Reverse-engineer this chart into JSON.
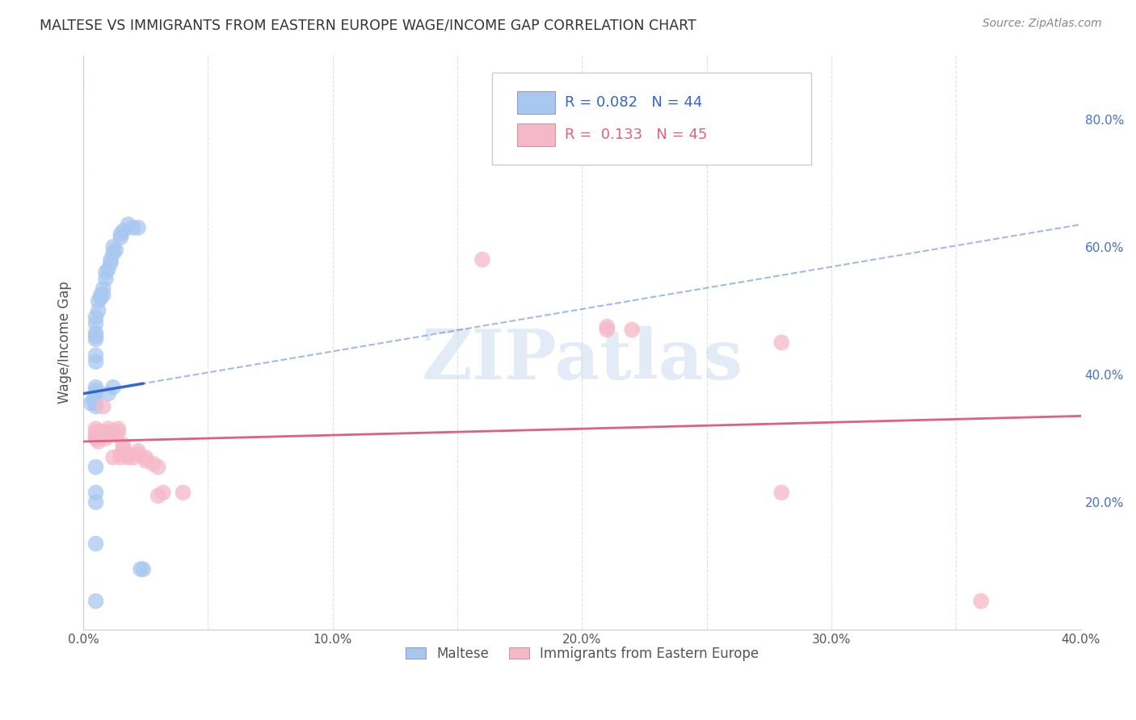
{
  "title": "MALTESE VS IMMIGRANTS FROM EASTERN EUROPE WAGE/INCOME GAP CORRELATION CHART",
  "source": "Source: ZipAtlas.com",
  "ylabel": "Wage/Income Gap",
  "xlim": [
    0.0,
    0.4
  ],
  "ylim": [
    0.0,
    0.9
  ],
  "xtick_positions": [
    0.0,
    0.05,
    0.1,
    0.15,
    0.2,
    0.25,
    0.3,
    0.35,
    0.4
  ],
  "xtick_labels": [
    "0.0%",
    "",
    "10.0%",
    "",
    "20.0%",
    "",
    "30.0%",
    "",
    "40.0%"
  ],
  "ytick_positions": [
    0.2,
    0.4,
    0.6,
    0.8
  ],
  "ytick_labels": [
    "20.0%",
    "40.0%",
    "60.0%",
    "80.0%"
  ],
  "legend_labels": [
    "Maltese",
    "Immigrants from Eastern Europe"
  ],
  "blue_R": "0.082",
  "blue_N": "44",
  "pink_R": "0.133",
  "pink_N": "45",
  "blue_color": "#a8c8f0",
  "pink_color": "#f5b8c8",
  "blue_line_color": "#3366cc",
  "pink_line_color": "#e06080",
  "watermark": "ZIPatlas",
  "blue_points": [
    [
      0.005,
      0.37
    ],
    [
      0.005,
      0.375
    ],
    [
      0.005,
      0.38
    ],
    [
      0.005,
      0.42
    ],
    [
      0.005,
      0.43
    ],
    [
      0.005,
      0.455
    ],
    [
      0.005,
      0.46
    ],
    [
      0.005,
      0.465
    ],
    [
      0.005,
      0.48
    ],
    [
      0.005,
      0.49
    ],
    [
      0.006,
      0.5
    ],
    [
      0.006,
      0.515
    ],
    [
      0.007,
      0.52
    ],
    [
      0.007,
      0.525
    ],
    [
      0.008,
      0.525
    ],
    [
      0.008,
      0.535
    ],
    [
      0.009,
      0.55
    ],
    [
      0.009,
      0.56
    ],
    [
      0.01,
      0.565
    ],
    [
      0.011,
      0.575
    ],
    [
      0.011,
      0.58
    ],
    [
      0.012,
      0.59
    ],
    [
      0.012,
      0.6
    ],
    [
      0.013,
      0.595
    ],
    [
      0.015,
      0.615
    ],
    [
      0.015,
      0.62
    ],
    [
      0.016,
      0.625
    ],
    [
      0.018,
      0.635
    ],
    [
      0.02,
      0.63
    ],
    [
      0.022,
      0.63
    ],
    [
      0.005,
      0.35
    ],
    [
      0.005,
      0.355
    ],
    [
      0.004,
      0.36
    ],
    [
      0.003,
      0.355
    ],
    [
      0.005,
      0.3
    ],
    [
      0.005,
      0.255
    ],
    [
      0.005,
      0.215
    ],
    [
      0.005,
      0.2
    ],
    [
      0.01,
      0.37
    ],
    [
      0.012,
      0.38
    ],
    [
      0.023,
      0.095
    ],
    [
      0.024,
      0.095
    ],
    [
      0.005,
      0.135
    ],
    [
      0.005,
      0.045
    ]
  ],
  "pink_points": [
    [
      0.005,
      0.3
    ],
    [
      0.005,
      0.305
    ],
    [
      0.005,
      0.31
    ],
    [
      0.005,
      0.315
    ],
    [
      0.006,
      0.295
    ],
    [
      0.006,
      0.3
    ],
    [
      0.006,
      0.305
    ],
    [
      0.006,
      0.31
    ],
    [
      0.007,
      0.305
    ],
    [
      0.007,
      0.31
    ],
    [
      0.008,
      0.305
    ],
    [
      0.008,
      0.35
    ],
    [
      0.009,
      0.3
    ],
    [
      0.009,
      0.305
    ],
    [
      0.01,
      0.305
    ],
    [
      0.01,
      0.31
    ],
    [
      0.01,
      0.315
    ],
    [
      0.012,
      0.31
    ],
    [
      0.012,
      0.27
    ],
    [
      0.013,
      0.305
    ],
    [
      0.014,
      0.315
    ],
    [
      0.014,
      0.31
    ],
    [
      0.015,
      0.27
    ],
    [
      0.015,
      0.275
    ],
    [
      0.016,
      0.285
    ],
    [
      0.016,
      0.29
    ],
    [
      0.018,
      0.275
    ],
    [
      0.018,
      0.27
    ],
    [
      0.02,
      0.27
    ],
    [
      0.022,
      0.275
    ],
    [
      0.022,
      0.28
    ],
    [
      0.025,
      0.265
    ],
    [
      0.025,
      0.27
    ],
    [
      0.028,
      0.26
    ],
    [
      0.03,
      0.255
    ],
    [
      0.03,
      0.21
    ],
    [
      0.032,
      0.215
    ],
    [
      0.04,
      0.215
    ],
    [
      0.16,
      0.58
    ],
    [
      0.21,
      0.47
    ],
    [
      0.21,
      0.475
    ],
    [
      0.22,
      0.47
    ],
    [
      0.28,
      0.45
    ],
    [
      0.28,
      0.215
    ],
    [
      0.36,
      0.045
    ]
  ],
  "background_color": "#ffffff",
  "grid_color": "#dddddd"
}
